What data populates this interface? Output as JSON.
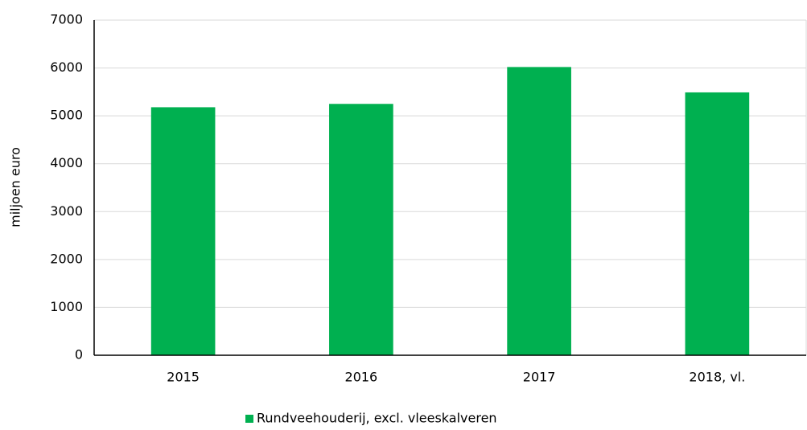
{
  "chart_data": {
    "type": "bar",
    "y_label": "miljoen euro",
    "categories": [
      "2015",
      "2016",
      "2017",
      "2018, vl."
    ],
    "series": [
      {
        "name": "Rundveehouderij, excl. vleeskalveren",
        "color": "#00b050",
        "values": [
          5180,
          5250,
          6020,
          5490
        ]
      }
    ],
    "ylim": [
      0,
      7000
    ],
    "yticks": [
      0,
      1000,
      2000,
      3000,
      4000,
      5000,
      6000,
      7000
    ],
    "grid": true,
    "legend": "bottom"
  }
}
